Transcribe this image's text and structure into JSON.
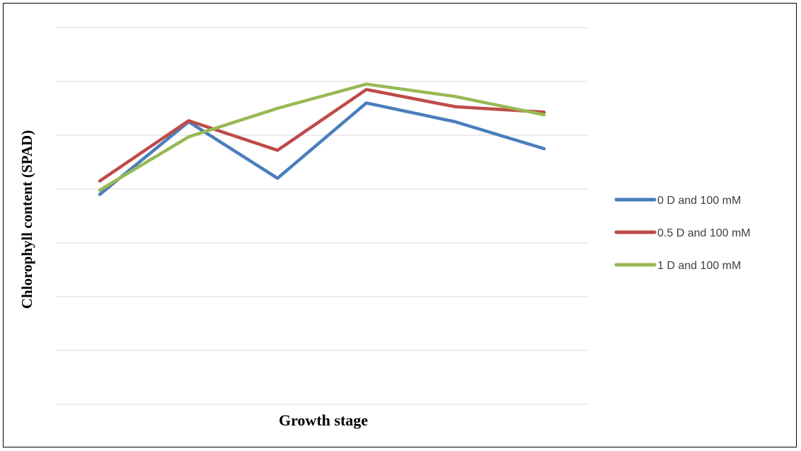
{
  "chart_data": {
    "type": "line",
    "xlabel": "Growth stage",
    "ylabel": "Chlorophyll content (SPAD)",
    "ylim": [
      0,
      7
    ],
    "x": [
      1,
      2,
      3,
      4,
      5,
      6
    ],
    "grid": true,
    "legend_position": "right",
    "series": [
      {
        "name": "0 D and 100 mM",
        "color": "#4A7EBB",
        "values": [
          3.9,
          5.25,
          4.2,
          5.6,
          5.25,
          4.75
        ]
      },
      {
        "name": "0.5 D and 100 mM",
        "color": "#BE4B48",
        "values": [
          4.15,
          5.27,
          4.72,
          5.85,
          5.53,
          5.43
        ]
      },
      {
        "name": "1 D and 100 mM",
        "color": "#98B954",
        "values": [
          3.98,
          4.97,
          5.5,
          5.95,
          5.72,
          5.38
        ]
      }
    ]
  }
}
